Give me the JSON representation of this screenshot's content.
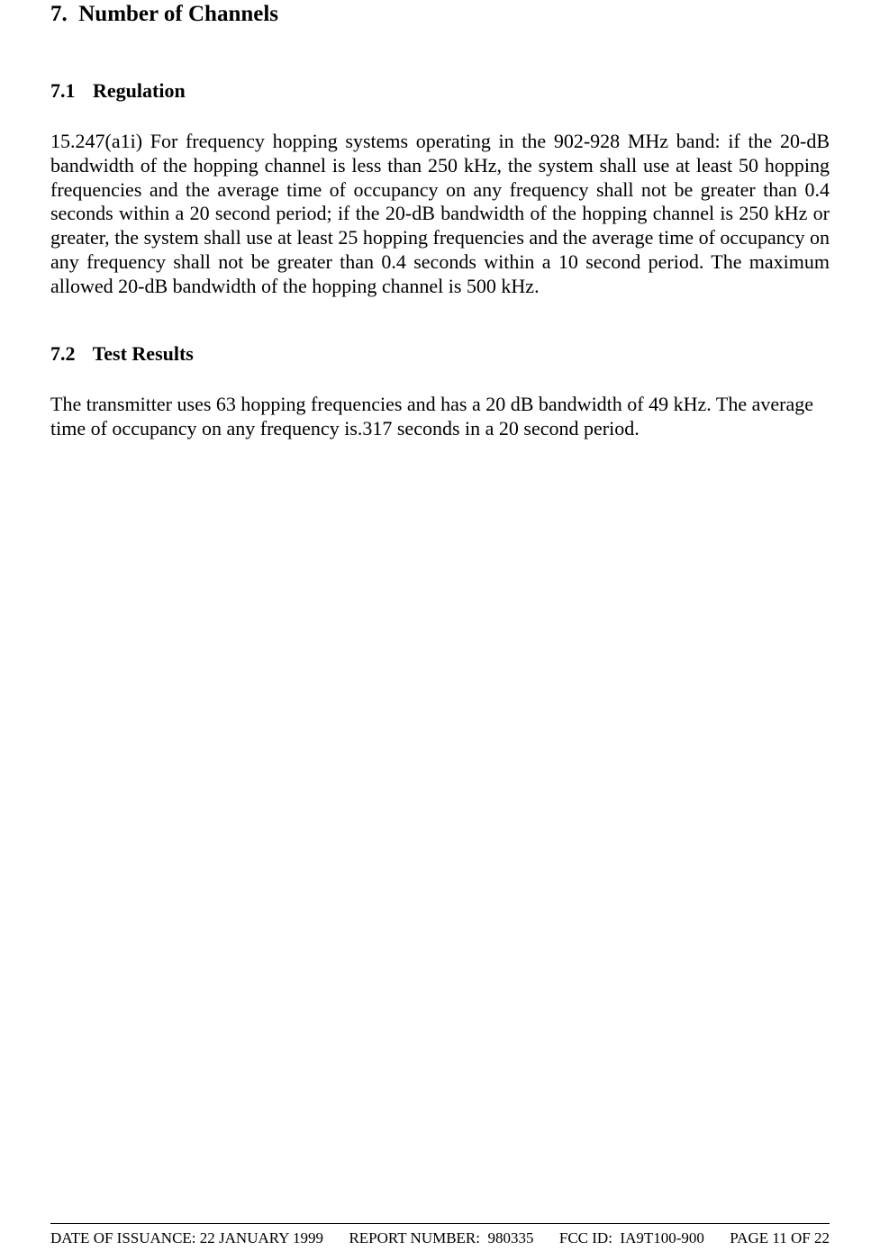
{
  "section": {
    "number": "7.",
    "title": "Number of Channels"
  },
  "sub1": {
    "number": "7.1",
    "title": "Regulation",
    "body": "15.247(a1i) For frequency hopping systems operating in the 902-928 MHz band: if the 20-dB bandwidth of the hopping channel is less than 250 kHz, the system shall use at least 50 hopping frequencies and the average time of occupancy on any frequency shall not be greater than 0.4 seconds within a 20 second period; if the 20-dB bandwidth of the hopping channel is 250 kHz or greater, the system shall use at least 25 hopping frequencies and the average time of occupancy on any frequency shall not be greater than 0.4 seconds within a 10 second period.  The maximum allowed 20-dB bandwidth of the hopping channel is 500 kHz."
  },
  "sub2": {
    "number": "7.2",
    "title": "Test Results",
    "body": "The transmitter uses 63 hopping frequencies and has a 20 dB bandwidth of 49 kHz.  The average time of occupancy on any frequency is.317 seconds in a 20 second period."
  },
  "footer": {
    "issuance_label": "DATE OF ISSUANCE:",
    "issuance_value": "22 JANUARY 1999",
    "report_label": "REPORT NUMBER:",
    "report_value": "980335",
    "fcc_label": "FCC ID:",
    "fcc_value": "IA9T100-900",
    "page_label": "PAGE 11 OF 22"
  }
}
